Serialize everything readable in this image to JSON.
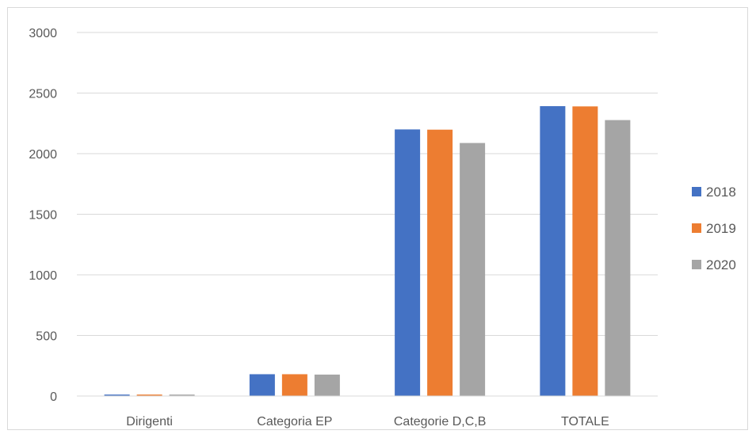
{
  "chart_data": {
    "type": "bar",
    "title": "",
    "xlabel": "",
    "ylabel": "",
    "categories": [
      "Dirigenti",
      "Categoria EP",
      "Categorie D,C,B",
      "TOTALE"
    ],
    "series": [
      {
        "name": "2018",
        "color": "#4472c4",
        "values": [
          12,
          180,
          2200,
          2392
        ]
      },
      {
        "name": "2019",
        "color": "#ed7d31",
        "values": [
          12,
          180,
          2198,
          2390
        ]
      },
      {
        "name": "2020",
        "color": "#a5a5a5",
        "values": [
          12,
          177,
          2088,
          2277
        ]
      }
    ],
    "ylim": [
      0,
      3000
    ],
    "yticks": [
      "0",
      "500",
      "1000",
      "1500",
      "2000",
      "2500",
      "3000"
    ],
    "grid": true,
    "legend_position": "right"
  }
}
